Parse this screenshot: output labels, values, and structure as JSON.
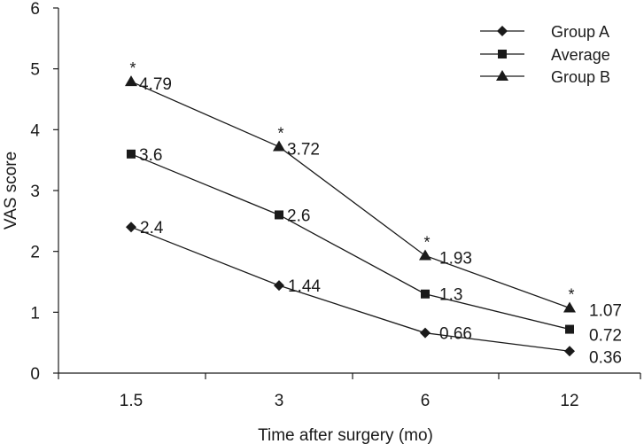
{
  "chart_data": {
    "type": "line",
    "title": "",
    "xlabel": "Time after surgery (mo)",
    "ylabel": "VAS score",
    "categories": [
      "1.5",
      "3",
      "6",
      "12"
    ],
    "ylim": [
      0,
      6
    ],
    "yticks": [
      0,
      1,
      2,
      3,
      4,
      5,
      6
    ],
    "grid": false,
    "legend_position": "top-right",
    "series": [
      {
        "name": "Group A",
        "marker": "diamond",
        "values": [
          2.4,
          1.44,
          0.66,
          0.36
        ],
        "labels": [
          "2.4",
          "1.44",
          "0.66",
          "0.36"
        ]
      },
      {
        "name": "Average",
        "marker": "square",
        "values": [
          3.6,
          2.6,
          1.3,
          0.72
        ],
        "labels": [
          "3.6",
          "2.6",
          "1.3",
          "0.72"
        ]
      },
      {
        "name": "Group B",
        "marker": "triangle",
        "values": [
          4.79,
          3.72,
          1.93,
          1.07
        ],
        "labels": [
          "4.79",
          "3.72",
          "1.93",
          "1.07"
        ]
      }
    ],
    "annotations": [
      {
        "text": "*",
        "series": "Group B",
        "category": "1.5"
      },
      {
        "text": "*",
        "series": "Group B",
        "category": "3"
      },
      {
        "text": "*",
        "series": "Group B",
        "category": "6"
      },
      {
        "text": "*",
        "series": "Group B",
        "category": "12"
      }
    ],
    "colors": {
      "line": "#1a1a1a",
      "background": "#ffffff"
    }
  }
}
